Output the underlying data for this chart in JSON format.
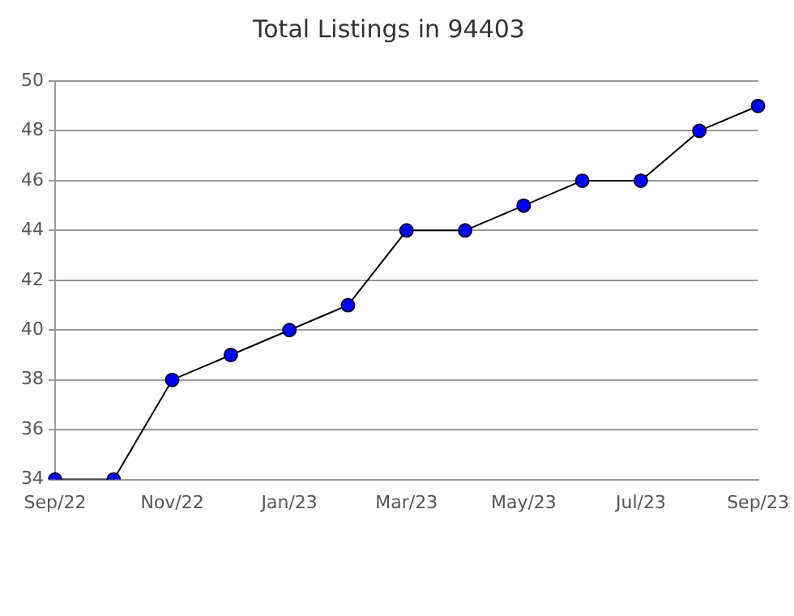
{
  "chart_data": {
    "type": "line",
    "title": "Total Listings in 94403",
    "categories": [
      "Sep/22",
      null,
      "Nov/22",
      null,
      "Jan/23",
      null,
      "Mar/23",
      null,
      "May/23",
      null,
      "Jul/23",
      null,
      "Sep/23"
    ],
    "series": [
      {
        "color": "#0000ff",
        "values": [
          34,
          34,
          38,
          39,
          40,
          41,
          44,
          44,
          45,
          46,
          46,
          48,
          49
        ]
      }
    ],
    "ylim": [
      34,
      50
    ],
    "yticks": [
      34,
      36,
      38,
      40,
      42,
      44,
      46,
      48,
      50
    ],
    "grid": "y",
    "marker": "circle",
    "line_style": "solid",
    "legend": false
  }
}
